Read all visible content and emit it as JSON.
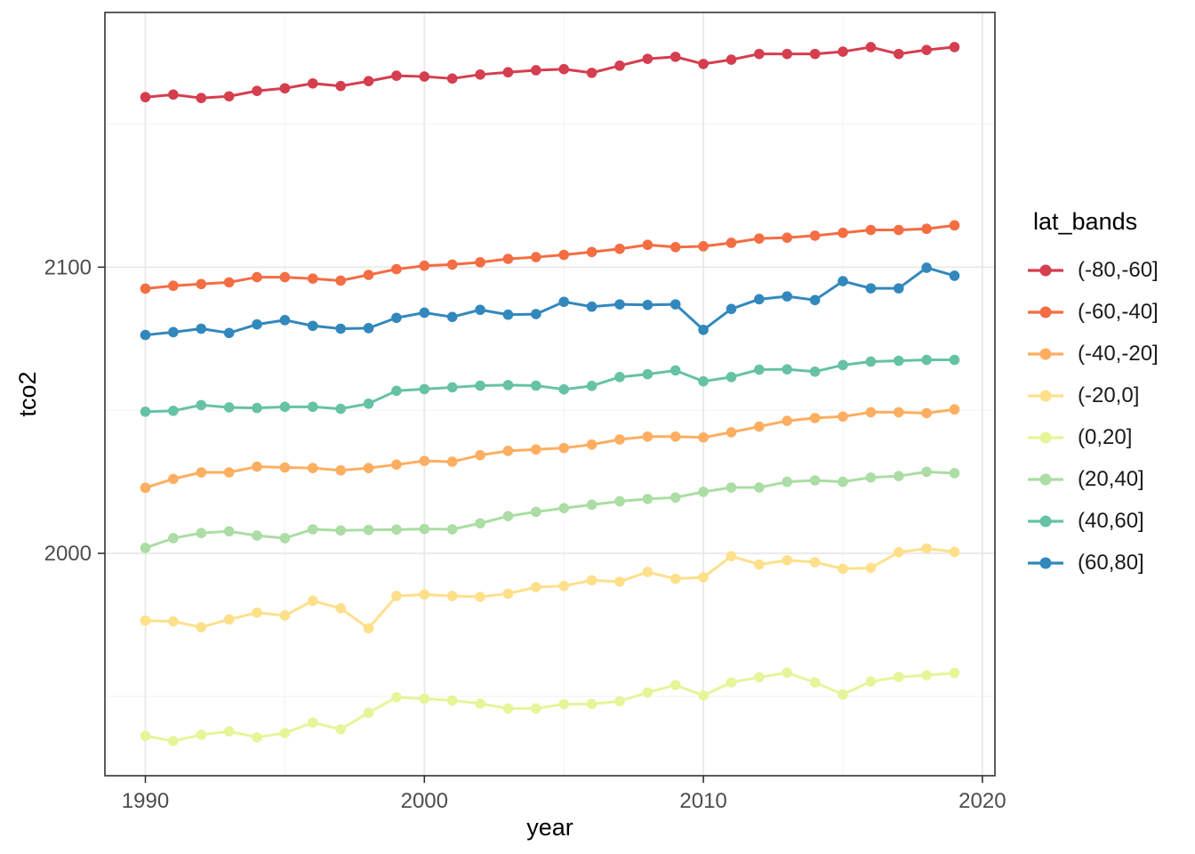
{
  "figure": {
    "background": "#ffffff"
  },
  "style": {
    "grid_major_color": "#e8e8e8",
    "grid_minor_color": "#f2f2f2",
    "panel_border_color": "#333333",
    "tick_color": "#333333",
    "tick_label_color": "#4d4d4d",
    "axis_title_color": "#000000"
  },
  "chart_data": {
    "type": "line",
    "title": "",
    "xlabel": "year",
    "ylabel": "tco2",
    "legend_title": "lat_bands",
    "legend_position": "right",
    "grid": true,
    "marker": "circle",
    "xlim": [
      1988.55,
      2020.45
    ],
    "ylim": [
      1922.3,
      2189.0
    ],
    "x_ticks": [
      1990,
      2000,
      2010,
      2020
    ],
    "x_tick_labels": [
      "1990",
      "2000",
      "2010",
      "2020"
    ],
    "x_minor": [
      1995,
      2005,
      2015
    ],
    "y_ticks": [
      2000,
      2100
    ],
    "y_tick_labels": [
      "2000",
      "2100"
    ],
    "y_minor": [
      1950,
      2050,
      2150
    ],
    "x": [
      1990,
      1991,
      1992,
      1993,
      1994,
      1995,
      1996,
      1997,
      1998,
      1999,
      2000,
      2001,
      2002,
      2003,
      2004,
      2005,
      2006,
      2007,
      2008,
      2009,
      2010,
      2011,
      2012,
      2013,
      2014,
      2015,
      2016,
      2017,
      2018,
      2019
    ],
    "series": [
      {
        "name": "(-80,-60]",
        "color": "#d53e4f",
        "values": [
          2159.4,
          2160.3,
          2159.1,
          2159.7,
          2161.6,
          2162.5,
          2164.2,
          2163.3,
          2165.0,
          2166.9,
          2166.6,
          2165.9,
          2167.3,
          2168.1,
          2168.8,
          2169.2,
          2167.9,
          2170.4,
          2172.8,
          2173.5,
          2171.0,
          2172.5,
          2174.5,
          2174.5,
          2174.5,
          2175.3,
          2176.9,
          2174.5,
          2175.9,
          2176.9
        ]
      },
      {
        "name": "(-60,-40]",
        "color": "#f46d43",
        "values": [
          2092.5,
          2093.5,
          2094.1,
          2094.7,
          2096.5,
          2096.5,
          2096.0,
          2095.3,
          2097.3,
          2099.3,
          2100.5,
          2100.9,
          2101.7,
          2102.9,
          2103.5,
          2104.3,
          2105.3,
          2106.4,
          2107.8,
          2107.0,
          2107.3,
          2108.5,
          2110.0,
          2110.3,
          2111.0,
          2112.0,
          2113.0,
          2113.0,
          2113.4,
          2114.6
        ]
      },
      {
        "name": "(-40,-20]",
        "color": "#fdae61",
        "values": [
          2022.9,
          2026.0,
          2028.3,
          2028.3,
          2030.3,
          2030.0,
          2029.8,
          2029.0,
          2029.8,
          2031.0,
          2032.3,
          2032.0,
          2034.3,
          2035.8,
          2036.3,
          2036.8,
          2038.0,
          2039.8,
          2040.8,
          2040.8,
          2040.5,
          2042.3,
          2044.3,
          2046.3,
          2047.3,
          2047.8,
          2049.3,
          2049.3,
          2049.0,
          2050.3
        ]
      },
      {
        "name": "(-20,0]",
        "color": "#fee08b",
        "values": [
          1976.5,
          1976.2,
          1974.2,
          1976.9,
          1979.3,
          1978.3,
          1983.4,
          1980.8,
          1973.8,
          1985.1,
          1985.6,
          1985.1,
          1984.8,
          1985.9,
          1988.2,
          1988.6,
          1990.6,
          1990.1,
          1993.5,
          1991.1,
          1991.6,
          1999.0,
          1996.1,
          1997.6,
          1996.9,
          1994.6,
          1994.9,
          2000.4,
          2001.7,
          2000.5
        ]
      },
      {
        "name": "(0,20]",
        "color": "#e6f598",
        "values": [
          1936.2,
          1934.4,
          1936.6,
          1937.8,
          1935.7,
          1937.2,
          1940.9,
          1938.5,
          1944.3,
          1949.7,
          1949.2,
          1948.6,
          1947.5,
          1945.8,
          1945.8,
          1947.3,
          1947.4,
          1948.3,
          1951.4,
          1954.0,
          1950.3,
          1954.9,
          1956.7,
          1958.3,
          1954.9,
          1950.7,
          1955.2,
          1956.8,
          1957.4,
          1958.2
        ]
      },
      {
        "name": "(20,40]",
        "color": "#abdda4",
        "values": [
          2001.9,
          2005.3,
          2007.1,
          2007.7,
          2006.2,
          2005.3,
          2008.4,
          2008.0,
          2008.2,
          2008.3,
          2008.5,
          2008.4,
          2010.5,
          2013.0,
          2014.5,
          2015.8,
          2017.0,
          2018.2,
          2019.0,
          2019.5,
          2021.5,
          2023.0,
          2023.0,
          2025.0,
          2025.5,
          2025.0,
          2026.5,
          2027.0,
          2028.5,
          2028.0
        ]
      },
      {
        "name": "(40,60]",
        "color": "#66c2a5",
        "values": [
          2049.5,
          2049.8,
          2051.8,
          2051.0,
          2050.8,
          2051.2,
          2051.2,
          2050.5,
          2052.3,
          2056.8,
          2057.4,
          2058.0,
          2058.6,
          2058.8,
          2058.6,
          2057.3,
          2058.5,
          2061.6,
          2062.6,
          2063.9,
          2060.1,
          2061.6,
          2064.2,
          2064.3,
          2063.5,
          2065.8,
          2067.0,
          2067.3,
          2067.6,
          2067.6
        ]
      },
      {
        "name": "(60,80]",
        "color": "#3288bd",
        "values": [
          2076.3,
          2077.3,
          2078.5,
          2077.0,
          2080.0,
          2081.5,
          2079.5,
          2078.5,
          2078.7,
          2082.3,
          2084.1,
          2082.6,
          2085.1,
          2083.4,
          2083.6,
          2087.9,
          2086.2,
          2087.0,
          2086.8,
          2087.0,
          2078.1,
          2085.4,
          2088.8,
          2089.8,
          2088.5,
          2095.1,
          2092.6,
          2092.6,
          2099.8,
          2097.0
        ]
      }
    ]
  }
}
